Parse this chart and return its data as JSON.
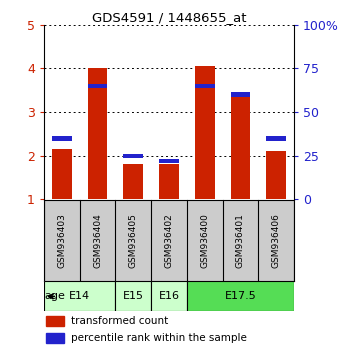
{
  "title": "GDS4591 / 1448655_at",
  "samples": [
    "GSM936403",
    "GSM936404",
    "GSM936405",
    "GSM936402",
    "GSM936400",
    "GSM936401",
    "GSM936406"
  ],
  "red_values": [
    2.15,
    4.0,
    1.82,
    1.82,
    4.05,
    3.45,
    2.1
  ],
  "blue_values_pct": [
    35,
    65,
    25,
    22,
    65,
    60,
    35
  ],
  "left_ylim": [
    1,
    5
  ],
  "left_yticks": [
    1,
    2,
    3,
    4,
    5
  ],
  "right_ylim": [
    0,
    100
  ],
  "right_yticks": [
    0,
    25,
    50,
    75,
    100
  ],
  "right_yticklabels": [
    "0",
    "25",
    "50",
    "75",
    "100%"
  ],
  "age_groups": [
    {
      "label": "E14",
      "span": [
        0,
        1
      ]
    },
    {
      "label": "E15",
      "span": [
        2,
        2
      ]
    },
    {
      "label": "E16",
      "span": [
        3,
        3
      ]
    },
    {
      "label": "E17.5",
      "span": [
        4,
        6
      ]
    }
  ],
  "age_colors": [
    "#ccffcc",
    "#ccffcc",
    "#ccffcc",
    "#55dd55"
  ],
  "red_color": "#cc2200",
  "blue_color": "#2222cc",
  "bg_color": "#ffffff",
  "sample_bg": "#cccccc",
  "legend_red": "transformed count",
  "legend_blue": "percentile rank within the sample"
}
